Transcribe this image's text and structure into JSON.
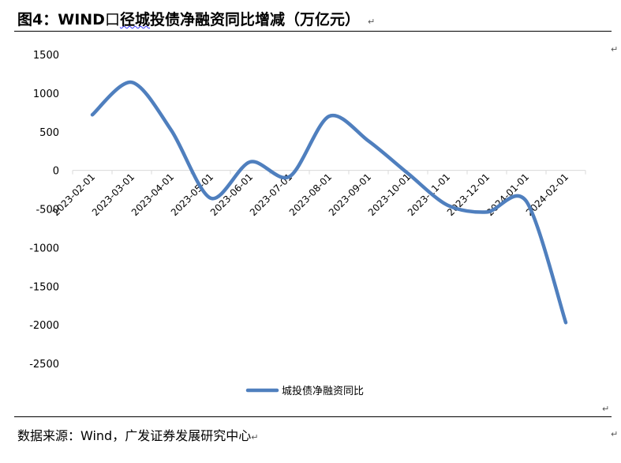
{
  "title": {
    "prefix": "图4：",
    "wind": "WIND",
    "box": "口",
    "wavy_text": "径城",
    "rest": "投债净融资同比增减（万亿元）",
    "mark": "↵"
  },
  "source": {
    "text": "数据来源：Wind，广发证券发展研究中心",
    "mark": "↵"
  },
  "side_marks": {
    "top": "↵",
    "bottom": "↵",
    "end": "↵"
  },
  "colors": {
    "line": "#4f7fbe",
    "axis": "#d9d9d9",
    "text": "#595959"
  },
  "chart_data": {
    "type": "line",
    "title": "",
    "xlabel": "",
    "ylabel": "",
    "ylim": [
      -2500,
      1500
    ],
    "yticks": [
      1500,
      1000,
      500,
      0,
      -500,
      -1000,
      -1500,
      -2000,
      -2500
    ],
    "categories": [
      "2023-02-01",
      "2023-03-01",
      "2023-04-01",
      "2023-05-01",
      "2023-06-01",
      "2023-07-01",
      "2023-08-01",
      "2023-09-01",
      "2023-10-01",
      "2023-11-01",
      "2023-12-01",
      "2024-01-01",
      "2024-02-01"
    ],
    "series": [
      {
        "name": "城投债净融资同比",
        "values": [
          720,
          1140,
          520,
          -360,
          110,
          -80,
          700,
          380,
          -40,
          -450,
          -540,
          -400,
          -1970
        ]
      }
    ],
    "legend_position": "bottom",
    "grid": false,
    "smooth": true
  }
}
